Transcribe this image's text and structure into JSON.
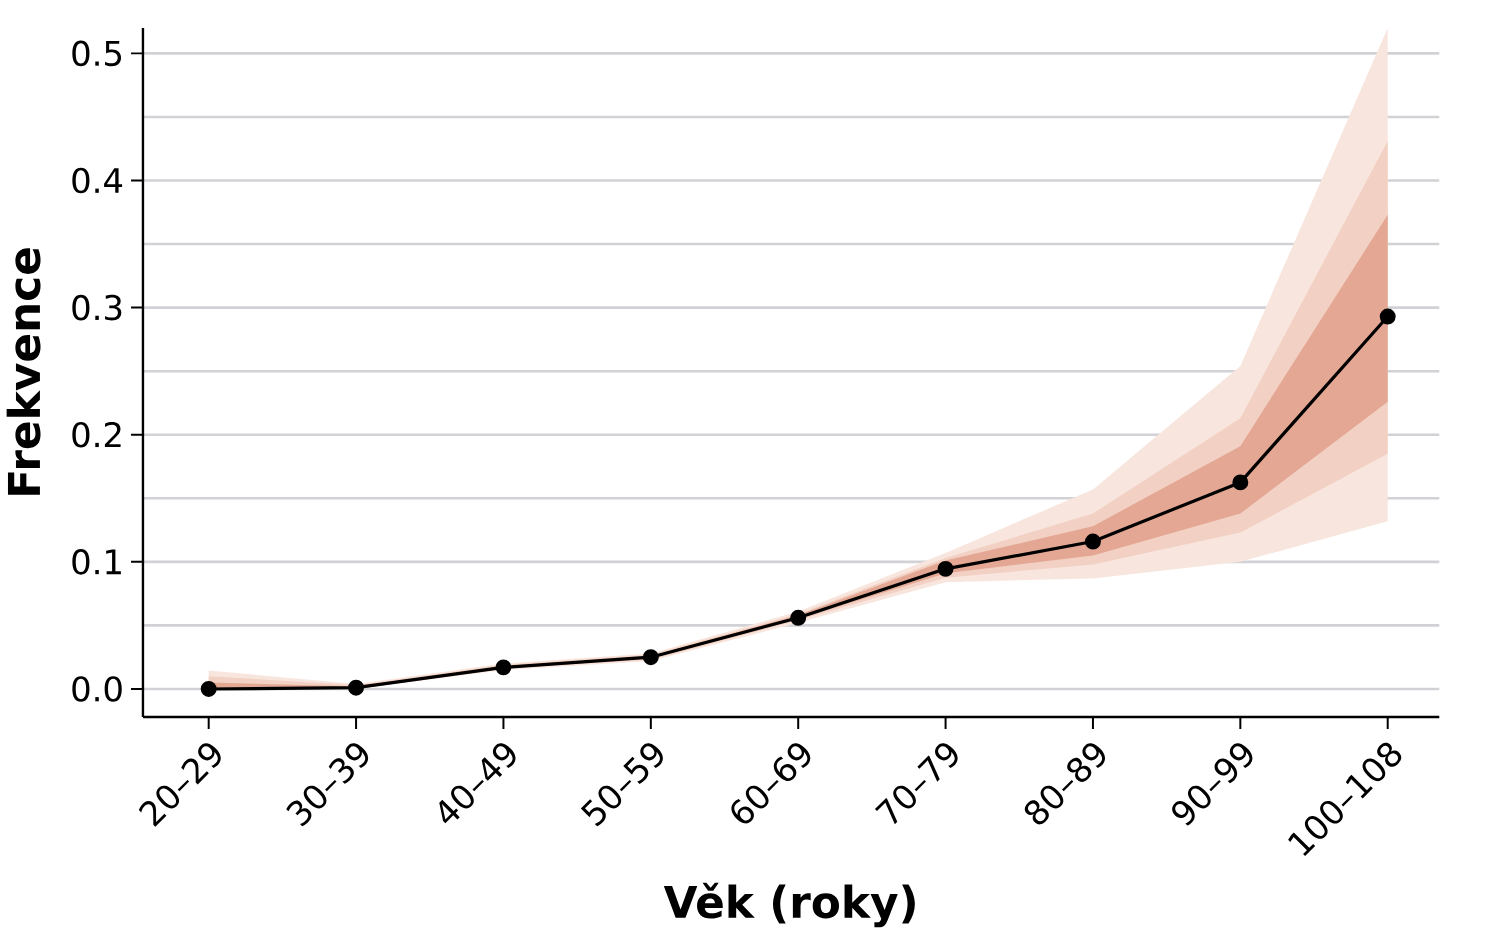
{
  "chart_data": {
    "type": "line",
    "xlabel": "Věk (roky)",
    "ylabel": "Frekvence",
    "categories": [
      "20–29",
      "30–39",
      "40–49",
      "50–59",
      "60–69",
      "70–79",
      "80–89",
      "90–99",
      "100–108"
    ],
    "series": [
      {
        "color": "#f8e6de",
        "values": [
          null,
          null,
          null,
          null,
          null,
          null,
          null,
          null,
          null
        ],
        "lower": [
          0.0,
          0.0,
          0.015,
          0.022,
          0.052,
          0.084,
          0.087,
          0.1,
          0.132
        ],
        "upper": [
          0.0145,
          0.004,
          0.02,
          0.028,
          0.061,
          0.107,
          0.157,
          0.254,
          0.52
        ]
      },
      {
        "color": "#f2d0c3",
        "values": [
          null,
          null,
          null,
          null,
          null,
          null,
          null,
          null,
          null
        ],
        "lower": [
          0.0,
          0.0,
          0.016,
          0.023,
          0.054,
          0.0875,
          0.098,
          0.123,
          0.185
        ],
        "upper": [
          0.01,
          0.003,
          0.019,
          0.027,
          0.059,
          0.103,
          0.138,
          0.213,
          0.431
        ]
      },
      {
        "color": "#e3a793",
        "values": [
          null,
          null,
          null,
          null,
          null,
          null,
          null,
          null,
          null
        ],
        "lower": [
          0.0,
          0.0,
          0.016,
          0.024,
          0.055,
          0.091,
          0.105,
          0.138,
          0.226
        ],
        "upper": [
          0.005,
          0.002,
          0.018,
          0.026,
          0.058,
          0.101,
          0.128,
          0.191,
          0.373
        ]
      },
      {
        "color": "#000000",
        "values": [
          0.0,
          0.001,
          0.017,
          0.025,
          0.056,
          0.0945,
          0.116,
          0.1625,
          0.293
        ]
      }
    ],
    "ylim": [
      -0.022,
      0.52
    ],
    "yticks": [
      {
        "value": 0,
        "label": "0.0"
      },
      {
        "value": 0.05,
        "label": null
      },
      {
        "value": 0.1,
        "label": "0.1"
      },
      {
        "value": 0.15,
        "label": null
      },
      {
        "value": 0.2,
        "label": "0.2"
      },
      {
        "value": 0.25,
        "label": null
      },
      {
        "value": 0.3,
        "label": "0.3"
      },
      {
        "value": 0.35,
        "label": null
      },
      {
        "value": 0.4,
        "label": "0.4"
      },
      {
        "value": 0.45,
        "label": null
      },
      {
        "value": 0.5,
        "label": "0.5"
      }
    ],
    "grid": "y",
    "marker": "circle",
    "line_style": "solid"
  }
}
